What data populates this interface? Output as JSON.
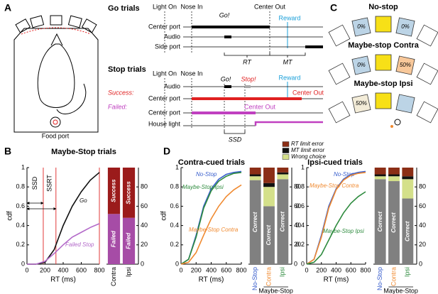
{
  "panel_a": {
    "letter": "A",
    "food_port": "Food port"
  },
  "go_trials": {
    "title": "Go trials",
    "events": [
      "Light On",
      "Nose In",
      "Go!",
      "Center Out",
      "Reward"
    ],
    "rows": [
      "Center port",
      "Audio",
      "Side port"
    ],
    "intervals": [
      "RT",
      "MT"
    ]
  },
  "stop_trials": {
    "title": "Stop trials",
    "events": [
      "Light On",
      "Nose In",
      "Go!",
      "Stop!",
      "Reward"
    ],
    "outcomes": [
      "Success:",
      "Failed:"
    ],
    "rows": [
      "Audio",
      "Center port",
      "Center port",
      "House light"
    ],
    "center_out": [
      "Center Out",
      "Center Out"
    ],
    "interval": "SSD"
  },
  "panel_c": {
    "letter": "C",
    "conditions": [
      {
        "title": "No-stop",
        "ports": [
          "0%",
          "0%"
        ]
      },
      {
        "title": "Maybe-stop Contra",
        "ports": [
          "0%",
          "50%"
        ]
      },
      {
        "title": "Maybe-stop Ipsi",
        "ports": [
          "50%"
        ]
      }
    ]
  },
  "panel_b": {
    "letter": "B"
  },
  "panel_d": {
    "letter": "D"
  },
  "chart_data": [
    {
      "type": "line",
      "title": "Maybe-Stop trials",
      "xlabel": "RT (ms)",
      "ylabel": "cdf",
      "x": [
        0,
        100,
        200,
        300,
        400,
        500,
        600,
        700,
        800
      ],
      "series": [
        {
          "name": "Go",
          "color": "#111111",
          "values": [
            0,
            0,
            0.02,
            0.15,
            0.4,
            0.6,
            0.75,
            0.87,
            0.95
          ]
        },
        {
          "name": "Failed Stop",
          "color": "#b36ac9",
          "values": [
            0,
            0,
            0.03,
            0.11,
            0.2,
            0.28,
            0.33,
            0.38,
            0.42
          ]
        }
      ],
      "xlim": [
        0,
        800
      ],
      "ylim": [
        0,
        1
      ],
      "xticks": [
        0,
        200,
        400,
        600,
        800
      ],
      "yticks": [
        0,
        0.2,
        0.4,
        0.6,
        0.8,
        1
      ],
      "vlines": [
        180,
        320,
        800
      ],
      "vline_color": "#e23a3a",
      "annotations": [
        "SSD",
        "SSRT"
      ]
    },
    {
      "type": "bar",
      "stacked": true,
      "categories": [
        "Contra",
        "Ipsi"
      ],
      "series": [
        {
          "name": "Failed",
          "color": "#a64ca6",
          "values": [
            52,
            48
          ]
        },
        {
          "name": "Success",
          "color": "#9b1b1b",
          "values": [
            48,
            52
          ]
        }
      ],
      "ylim": [
        0,
        100
      ],
      "yticks": [
        0,
        20,
        40,
        60,
        80
      ]
    },
    {
      "type": "line",
      "title": "Contra-cued trials",
      "xlabel": "RT (ms)",
      "ylabel": "cdf",
      "x": [
        0,
        100,
        200,
        300,
        400,
        500,
        600,
        700,
        800
      ],
      "series": [
        {
          "name": "No-Stop",
          "color": "#3a5fcd",
          "values": [
            0,
            0.05,
            0.3,
            0.6,
            0.78,
            0.88,
            0.93,
            0.95,
            0.96
          ]
        },
        {
          "name": "Maybe-Stop Ipsi",
          "color": "#2e8b3e",
          "values": [
            0,
            0.05,
            0.28,
            0.58,
            0.76,
            0.86,
            0.91,
            0.94,
            0.95
          ]
        },
        {
          "name": "Maybe-Stop Contra",
          "color": "#f08a30",
          "values": [
            0,
            0.02,
            0.12,
            0.3,
            0.47,
            0.6,
            0.7,
            0.77,
            0.82
          ]
        }
      ],
      "xlim": [
        0,
        800
      ],
      "ylim": [
        0,
        1
      ],
      "xticks": [
        0,
        200,
        400,
        600,
        800
      ],
      "yticks": [
        0,
        0.2,
        0.4,
        0.6,
        0.8,
        1
      ]
    },
    {
      "type": "bar",
      "stacked": true,
      "categories": [
        "No-Stop",
        "Contra",
        "Ipsi"
      ],
      "category_colors": [
        "#3a5fcd",
        "#f08a30",
        "#2e8b3e"
      ],
      "series": [
        {
          "name": "Correct",
          "color": "#808080",
          "values": [
            87,
            60,
            88
          ]
        },
        {
          "name": "Wrong choice",
          "color": "#d4e08a",
          "values": [
            4,
            20,
            5
          ]
        },
        {
          "name": "MT limit error",
          "color": "#111111",
          "values": [
            2,
            4,
            2
          ]
        },
        {
          "name": "RT limit error",
          "color": "#8b2e16",
          "values": [
            7,
            16,
            5
          ]
        }
      ],
      "ylim": [
        0,
        100
      ],
      "yticks": [
        0,
        20,
        40,
        60,
        80
      ],
      "group_label": "Maybe-Stop"
    },
    {
      "type": "line",
      "title": "Ipsi-cued trials",
      "xlabel": "RT (ms)",
      "x": [
        0,
        100,
        200,
        300,
        400,
        500,
        600,
        700,
        800
      ],
      "series": [
        {
          "name": "No-Stop",
          "color": "#3a5fcd",
          "values": [
            0,
            0.05,
            0.3,
            0.6,
            0.78,
            0.88,
            0.93,
            0.95,
            0.96
          ]
        },
        {
          "name": "Maybe-Stop Contra",
          "color": "#f08a30",
          "values": [
            0,
            0.05,
            0.28,
            0.58,
            0.77,
            0.87,
            0.92,
            0.94,
            0.95
          ]
        },
        {
          "name": "Maybe-Stop Ipsi",
          "color": "#2e8b3e",
          "values": [
            0,
            0.02,
            0.1,
            0.25,
            0.4,
            0.53,
            0.63,
            0.7,
            0.75
          ]
        }
      ],
      "xlim": [
        0,
        800
      ],
      "ylim": [
        0,
        1
      ],
      "xticks": [
        0,
        200,
        400,
        600,
        800
      ],
      "yticks": [
        0,
        0.2,
        0.4,
        0.6,
        0.8,
        1
      ]
    },
    {
      "type": "bar",
      "stacked": true,
      "categories": [
        "No-Stop",
        "Contra",
        "Ipsi"
      ],
      "category_colors": [
        "#3a5fcd",
        "#f08a30",
        "#2e8b3e"
      ],
      "series": [
        {
          "name": "Correct",
          "color": "#808080",
          "values": [
            88,
            86,
            68
          ]
        },
        {
          "name": "Wrong choice",
          "color": "#d4e08a",
          "values": [
            3,
            5,
            20
          ]
        },
        {
          "name": "MT limit error",
          "color": "#111111",
          "values": [
            2,
            2,
            3
          ]
        },
        {
          "name": "RT limit error",
          "color": "#8b2e16",
          "values": [
            7,
            7,
            9
          ]
        }
      ],
      "ylim": [
        0,
        100
      ],
      "yticks": [
        0,
        20,
        40,
        60,
        80
      ],
      "group_label": "Maybe-Stop"
    }
  ]
}
